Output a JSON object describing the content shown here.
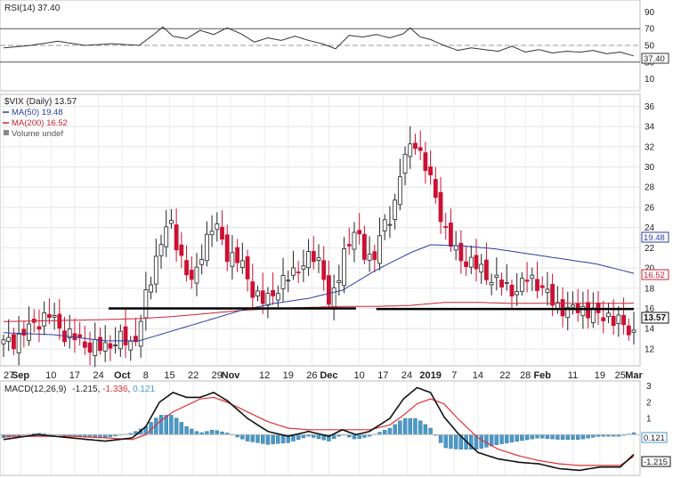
{
  "rsi_panel": {
    "label": "RSI(14) 37.40",
    "current_tag": "37.40",
    "ticks": [
      "90",
      "70",
      "50",
      "30",
      "10"
    ],
    "tick_values": [
      90,
      70,
      50,
      30,
      10
    ],
    "levels": [
      70,
      50,
      30
    ],
    "overbought_color": "#5a8a4a"
  },
  "price_panel": {
    "legend": {
      "symbol": "$VIX (Daily) 13.57",
      "ma50": "MA(50) 19.48",
      "ma200": "MA(200) 16.52",
      "volume": "Volume undef"
    },
    "tags": {
      "price": "13.57",
      "ma50": "19.48",
      "ma200": "16.52"
    },
    "ticks": [
      "36",
      "34",
      "32",
      "30",
      "28",
      "26",
      "24",
      "22",
      "20",
      "18",
      "16",
      "14",
      "12"
    ],
    "tick_values": [
      36,
      34,
      32,
      30,
      28,
      26,
      24,
      22,
      20,
      18,
      16,
      14,
      12
    ],
    "support_line": 16.0,
    "colors": {
      "up": "#ffffff",
      "down": "#cc1133",
      "ma50": "#2a3fa0",
      "ma200": "#cc2233"
    }
  },
  "x_axis": {
    "labels": [
      "27",
      "Sep",
      "10",
      "17",
      "24",
      "Oct",
      "8",
      "15",
      "22",
      "29",
      "Nov",
      "12",
      "19",
      "26",
      "Dec",
      "10",
      "17",
      "24",
      "2019",
      "7",
      "14",
      "22",
      "28",
      "Feb",
      "11",
      "19",
      "25",
      "Mar"
    ],
    "label_days": [
      0,
      5,
      14,
      21,
      28,
      35,
      42,
      49,
      56,
      63,
      67,
      77,
      84,
      91,
      96,
      105,
      112,
      119,
      126,
      133,
      140,
      148,
      154,
      159,
      168,
      176,
      182,
      186
    ],
    "bold": [
      "Sep",
      "Oct",
      "Nov",
      "Dec",
      "2019",
      "Feb",
      "Mar"
    ]
  },
  "macd_panel": {
    "label": "MACD(12,26,9)",
    "macd_value": "-1.215",
    "signal_value": "-1.336",
    "hist_value": "0.121",
    "ticks": [
      "3",
      "2",
      "1"
    ],
    "tick_values": [
      3,
      2,
      1
    ],
    "tags": {
      "hist": "0.121",
      "macd": "-1.215"
    },
    "colors": {
      "macd": "#111111",
      "signal": "#e03030",
      "hist": "#4a9ac8"
    }
  },
  "chart_data": {
    "type": "candlestick",
    "symbol": "$VIX",
    "x_range": [
      "Aug 27",
      "Mar"
    ],
    "price": {
      "ylim": [
        10.5,
        37
      ],
      "anchors_x": [
        0,
        5,
        10,
        14,
        18,
        22,
        25,
        28,
        31,
        35,
        38,
        40,
        42,
        44,
        46,
        49,
        52,
        56,
        58,
        61,
        63,
        66,
        70,
        74,
        77,
        80,
        84,
        88,
        91,
        94,
        96,
        98,
        101,
        104,
        107,
        110,
        112,
        115,
        117,
        119,
        121,
        124,
        126,
        128,
        131,
        134,
        138,
        142,
        146,
        149,
        152,
        155,
        158,
        161,
        164,
        167,
        170,
        172,
        175,
        178,
        180,
        182,
        184,
        186
      ],
      "anchors_close": [
        12.5,
        13.2,
        14.8,
        15.3,
        13.5,
        12.9,
        12.3,
        12.0,
        12.5,
        12.9,
        12.5,
        14.0,
        17.0,
        19.5,
        22.5,
        24.5,
        21.5,
        18.0,
        21.2,
        24.0,
        23.8,
        21.5,
        20.5,
        17.5,
        16.5,
        17.8,
        19.0,
        20.5,
        21.0,
        20.5,
        16.5,
        17.5,
        22.5,
        23.5,
        21.0,
        21.5,
        24.0,
        25.5,
        29.5,
        31.0,
        33.0,
        30.5,
        28.5,
        26.5,
        23.0,
        21.2,
        20.5,
        19.5,
        18.5,
        18.0,
        17.8,
        19.2,
        18.4,
        17.0,
        16.2,
        15.6,
        16.2,
        15.8,
        15.2,
        15.5,
        14.8,
        14.5,
        14.2,
        13.57
      ]
    },
    "ma50": {
      "x": [
        0,
        15,
        30,
        40,
        50,
        60,
        70,
        80,
        90,
        100,
        110,
        120,
        126,
        135,
        145,
        155,
        165,
        175,
        186
      ],
      "y": [
        13.6,
        13.4,
        12.8,
        12.8,
        13.8,
        14.8,
        15.8,
        16.5,
        17.0,
        17.8,
        19.8,
        21.5,
        22.3,
        22.2,
        21.9,
        21.4,
        20.9,
        20.4,
        19.48
      ]
    },
    "ma200": {
      "x": [
        0,
        30,
        40,
        50,
        60,
        70,
        80,
        90,
        100,
        110,
        120,
        130,
        140,
        150,
        160,
        170,
        186
      ],
      "y": [
        14.7,
        14.9,
        15.0,
        15.2,
        15.5,
        15.8,
        16.0,
        16.1,
        16.2,
        16.2,
        16.3,
        16.6,
        16.6,
        16.5,
        16.5,
        16.5,
        16.52
      ]
    },
    "rsi": {
      "ylim": [
        0,
        100
      ],
      "x": [
        0,
        8,
        16,
        24,
        32,
        40,
        44,
        47,
        50,
        54,
        58,
        62,
        66,
        70,
        74,
        78,
        82,
        86,
        90,
        94,
        98,
        102,
        106,
        110,
        114,
        118,
        120,
        123,
        126,
        130,
        134,
        138,
        142,
        146,
        150,
        154,
        158,
        162,
        166,
        170,
        174,
        178,
        182,
        186
      ],
      "y": [
        47,
        50,
        55,
        50,
        52,
        50,
        62,
        72,
        61,
        58,
        68,
        63,
        71,
        64,
        54,
        59,
        56,
        61,
        56,
        52,
        46,
        62,
        60,
        63,
        59,
        64,
        71,
        60,
        57,
        50,
        44,
        47,
        45,
        43,
        49,
        42,
        45,
        41,
        43,
        42,
        44,
        40,
        42,
        37.4
      ]
    },
    "macd": {
      "ylim": [
        -2.4,
        3.2
      ],
      "x": [
        0,
        10,
        20,
        30,
        38,
        42,
        46,
        50,
        54,
        58,
        62,
        66,
        72,
        78,
        84,
        90,
        96,
        100,
        104,
        108,
        114,
        118,
        122,
        126,
        130,
        134,
        140,
        146,
        152,
        158,
        164,
        170,
        176,
        182,
        186
      ],
      "macd": [
        -0.3,
        0.0,
        -0.2,
        -0.4,
        -0.2,
        0.5,
        2.0,
        2.6,
        2.3,
        2.3,
        2.6,
        2.1,
        1.0,
        0.2,
        -0.1,
        0.2,
        -0.1,
        0.3,
        0.0,
        0.2,
        1.0,
        2.2,
        2.9,
        2.6,
        1.1,
        0.1,
        -1.1,
        -1.5,
        -1.7,
        -1.8,
        -2.1,
        -2.2,
        -2.0,
        -2.0,
        -1.215
      ],
      "signal": [
        -0.1,
        -0.1,
        -0.1,
        -0.2,
        -0.3,
        0.0,
        0.8,
        1.4,
        1.8,
        2.2,
        2.3,
        2.0,
        1.4,
        0.8,
        0.4,
        0.3,
        0.3,
        0.3,
        0.3,
        0.3,
        0.6,
        1.2,
        1.9,
        2.2,
        1.9,
        1.0,
        -0.2,
        -0.9,
        -1.3,
        -1.6,
        -1.8,
        -1.9,
        -1.9,
        -1.9,
        -1.336
      ]
    }
  }
}
